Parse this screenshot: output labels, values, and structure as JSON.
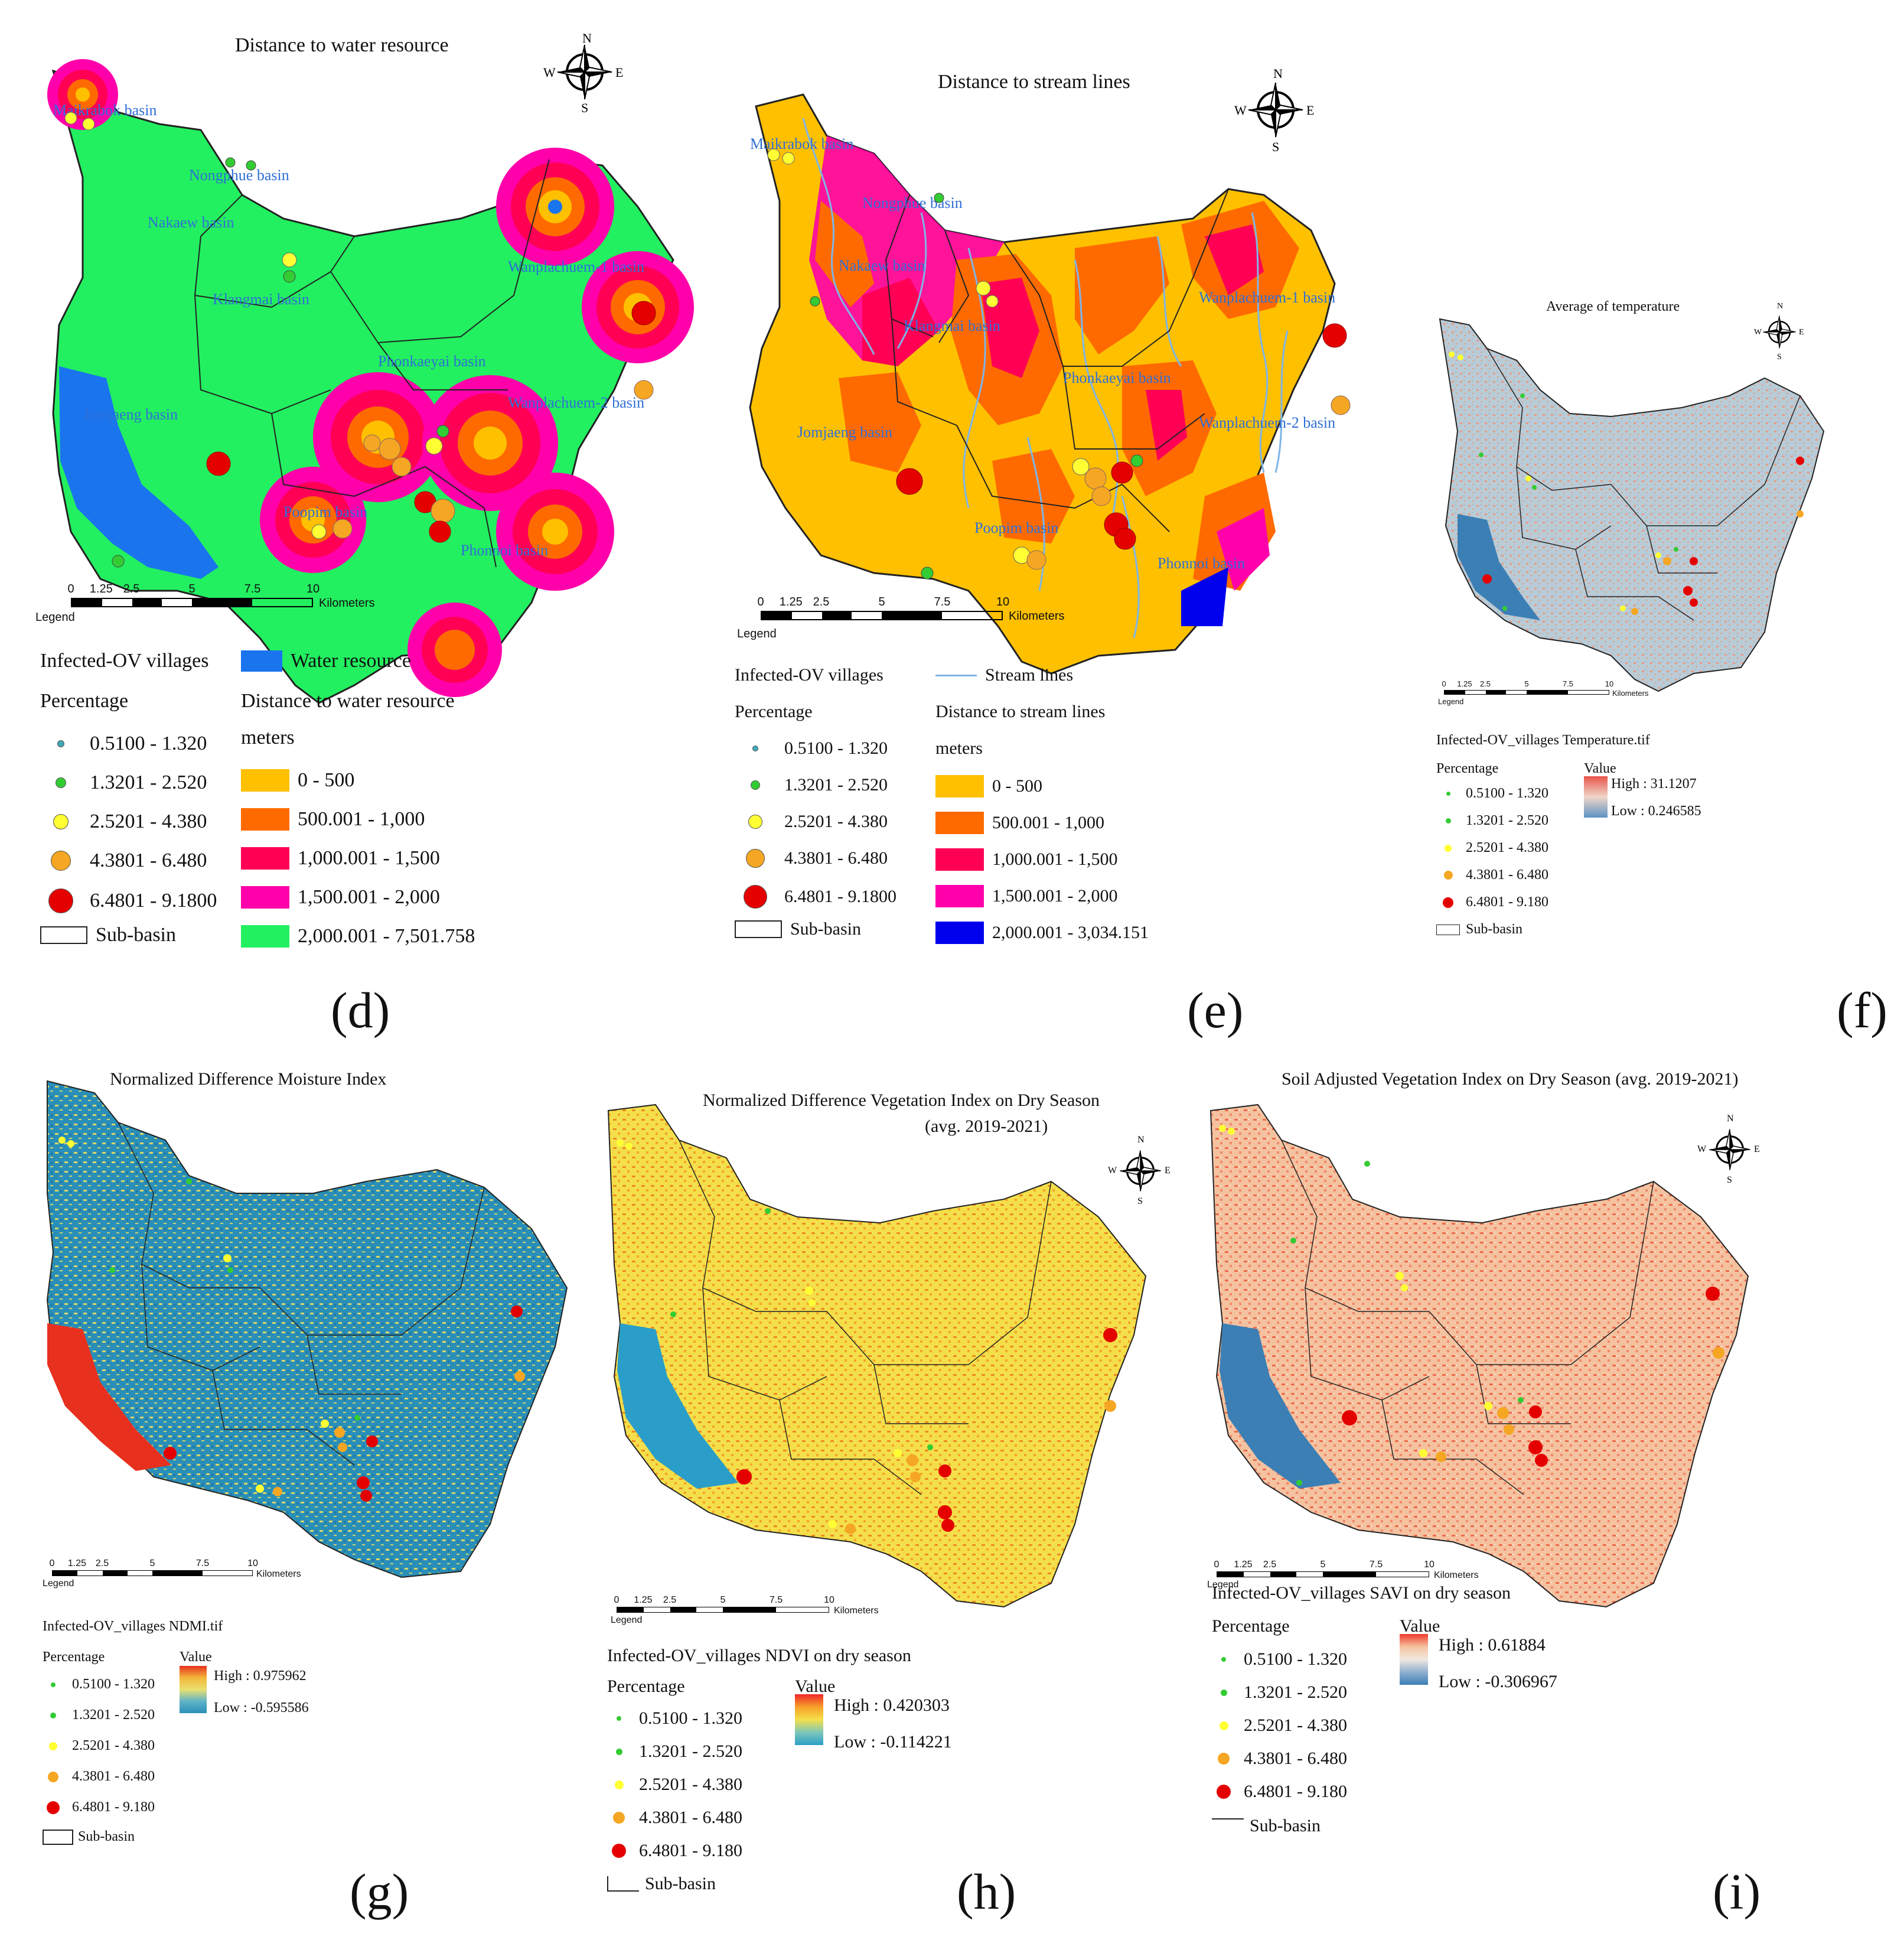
{
  "panels": {
    "d": {
      "letter": "(d)",
      "title": "Distance to water resource",
      "legend_heading": "Legend",
      "scale_ticks": [
        "0",
        "1.25",
        "2.5",
        "5",
        "7.5",
        "10"
      ],
      "scale_unit": "Kilometers",
      "basins": [
        "Maikrabok basin",
        "Nongphue basin",
        "Nakaew basin",
        "Klangmai basin",
        "Wanplachuem-1 basin",
        "Phonkaeyai basin",
        "Wanplachuem-2 basin",
        "Jomjaeng basin",
        "Poopim basin",
        "Phonnoi basin"
      ],
      "villages_label": "Infected-OV villages",
      "percentage_label": "Percentage",
      "classes": [
        "0.5100 - 1.320",
        "1.3201 - 2.520",
        "2.5201 - 4.380",
        "4.3801 - 6.480",
        "6.4801 - 9.1800"
      ],
      "subbasin_label": "Sub-basin",
      "feature_label": "Water resource",
      "distance_heading": "Distance to water resource",
      "units": "meters",
      "distance_classes": [
        "0 - 500",
        "500.001 - 1,000",
        "1,000.001 - 1,500",
        "1,500.001 - 2,000",
        "2,000.001 - 7,501.758"
      ],
      "distance_colors": [
        "#ffc000",
        "#ff6a00",
        "#ff0055",
        "#ff00aa",
        "#22f060"
      ],
      "water_color": "#1a74ee"
    },
    "e": {
      "letter": "(e)",
      "title": "Distance to stream lines",
      "legend_heading": "Legend",
      "scale_ticks": [
        "0",
        "1.25",
        "2.5",
        "5",
        "7.5",
        "10"
      ],
      "scale_unit": "Kilometers",
      "basins": [
        "Maikrabok basin",
        "Nongphue basin",
        "Nakaew basin",
        "Klangmai basin",
        "Wanplachuem-1 basin",
        "Phonkaeyai basin",
        "Wanplachuem-2 basin",
        "Jomjaeng basin",
        "Poopim basin",
        "Phonnoi basin"
      ],
      "villages_label": "Infected-OV villages",
      "percentage_label": "Percentage",
      "classes": [
        "0.5100 - 1.320",
        "1.3201 - 2.520",
        "2.5201 - 4.380",
        "4.3801 - 6.480",
        "6.4801 - 9.1800"
      ],
      "subbasin_label": "Sub-basin",
      "feature_label": "Stream lines",
      "distance_heading": "Distance to stream lines",
      "units": "meters",
      "distance_classes": [
        "0 - 500",
        "500.001 - 1,000",
        "1,000.001 - 1,500",
        "1,500.001 - 2,000",
        "2,000.001 - 3,034.151"
      ],
      "distance_colors": [
        "#ffc000",
        "#ff6a00",
        "#ff0055",
        "#ff00aa",
        "#0000ee"
      ],
      "stream_color": "#7fb5e8"
    },
    "f": {
      "letter": "(f)",
      "title": "Average of temperature",
      "scale_ticks": [
        "0",
        "1.25",
        "2.5",
        "5",
        "7.5",
        "10"
      ],
      "scale_unit": "Kilometers",
      "legend_heading": "Legend",
      "legend_title": "Infected-OV_villages Temperature.tif",
      "percentage_label": "Percentage",
      "value_label": "Value",
      "high": "High : 31.1207",
      "low": "Low : 0.246585",
      "classes": [
        "0.5100 - 1.320",
        "1.3201 - 2.520",
        "2.5201 - 4.380",
        "4.3801 - 6.480",
        "6.4801 - 9.180"
      ],
      "subbasin_label": "Sub-basin"
    },
    "g": {
      "letter": "(g)",
      "title": "Normalized Difference Moisture Index",
      "scale_ticks": [
        "0",
        "1.25",
        "2.5",
        "5",
        "7.5",
        "10"
      ],
      "scale_unit": "Kilometers",
      "legend_heading": "Legend",
      "legend_title": "Infected-OV_villages NDMI.tif",
      "percentage_label": "Percentage",
      "value_label": "Value",
      "high": "High : 0.975962",
      "low": "Low : -0.595586",
      "classes": [
        "0.5100 - 1.320",
        "1.3201 - 2.520",
        "2.5201 - 4.380",
        "4.3801 - 6.480",
        "6.4801 - 9.180"
      ],
      "subbasin_label": "Sub-basin"
    },
    "h": {
      "letter": "(h)",
      "title": "Normalized Difference Vegetation Index  on Dry Season",
      "title_line2": "(avg. 2019-2021)",
      "scale_ticks": [
        "0",
        "1.25",
        "2.5",
        "5",
        "7.5",
        "10"
      ],
      "scale_unit": "Kilometers",
      "legend_heading": "Legend",
      "legend_title": "Infected-OV_villages NDVI on dry season",
      "percentage_label": "Percentage",
      "value_label": "Value",
      "high": "High : 0.420303",
      "low": "Low : -0.114221",
      "classes": [
        "0.5100 - 1.320",
        "1.3201 - 2.520",
        "2.5201 - 4.380",
        "4.3801 - 6.480",
        "6.4801 - 9.180"
      ],
      "subbasin_label": "Sub-basin"
    },
    "i": {
      "letter": "(i)",
      "title": "Soil Adjusted Vegetation Index on Dry Season (avg. 2019-2021)",
      "scale_ticks": [
        "0",
        "1.25",
        "2.5",
        "5",
        "7.5",
        "10"
      ],
      "scale_unit": "Kilometers",
      "legend_heading": "Legend",
      "legend_title": "Infected-OV_villages SAVI on dry season",
      "percentage_label": "Percentage",
      "value_label": "Value",
      "high": "High : 0.61884",
      "low": "Low : -0.306967",
      "classes": [
        "0.5100 - 1.320",
        "1.3201 - 2.520",
        "2.5201 - 4.380",
        "4.3801 - 6.480",
        "6.4801 - 9.180"
      ],
      "subbasin_label": "Sub-basin"
    }
  },
  "village_class_colors": [
    "#3fa9b8",
    "#33cc33",
    "#ffff33",
    "#f5a623",
    "#e50000"
  ],
  "compass_letters": [
    "N",
    "E",
    "S",
    "W"
  ]
}
